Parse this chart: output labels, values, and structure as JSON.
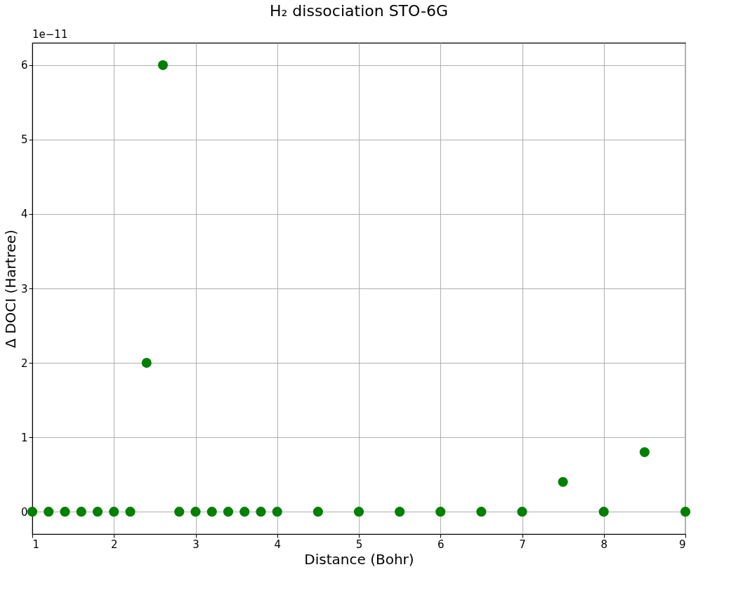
{
  "chart_data": {
    "type": "scatter",
    "title": "H₂ dissociation STO-6G",
    "xlabel": "Distance (Bohr)",
    "ylabel": "Δ DOCI (Hartree)",
    "x": [
      1,
      1.2,
      1.4,
      1.6,
      1.8,
      2,
      2.2,
      2.4,
      2.6,
      2.8,
      3,
      3.2,
      3.4,
      3.6,
      3.8,
      4,
      4.5,
      5,
      5.5,
      6,
      6.5,
      7,
      7.5,
      8,
      8.5,
      9
    ],
    "series": [
      {
        "color": "#008000",
        "values": [
          0,
          0,
          0,
          0,
          0,
          0,
          0,
          2,
          6,
          0,
          0,
          0,
          0,
          0,
          0,
          0,
          0,
          0,
          0,
          0,
          0,
          0,
          0.4,
          0,
          0.8,
          0
        ]
      }
    ],
    "xlim": [
      1,
      9
    ],
    "xticks": [
      1,
      2,
      3,
      4,
      5,
      6,
      7,
      8,
      9
    ],
    "ylim": [
      -0.3,
      6.3
    ],
    "yticks": [
      0,
      1,
      2,
      3,
      4,
      5,
      6
    ],
    "annotations": [
      "1e−11"
    ],
    "grid": true,
    "marker": "circle"
  }
}
